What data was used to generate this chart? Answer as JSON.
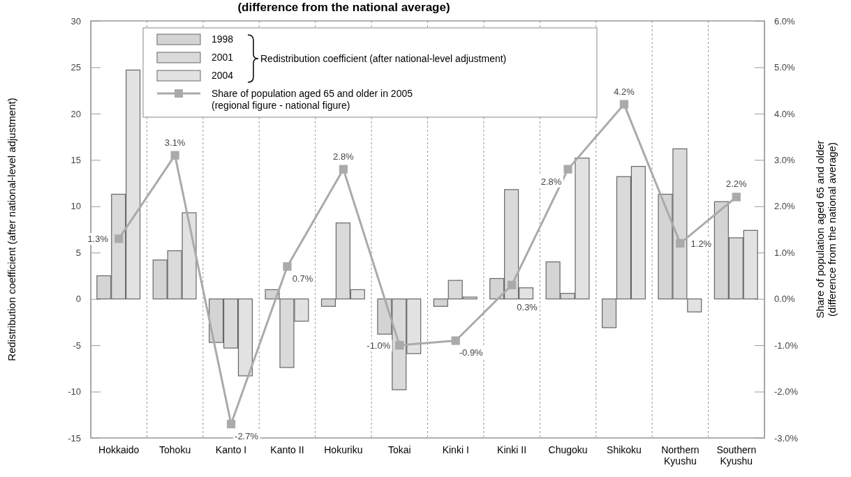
{
  "chart_data": {
    "type": "bar",
    "title": "(difference from the national average)",
    "ylabel": "Redistribution coefficient (after national-level adjustment)",
    "y2label": "Share of population aged 65 and older\n(difference from the national average)",
    "legend_title": "Redistribution coefficient (after national-level adjustment)",
    "categories": [
      "Hokkaido",
      "Tohoku",
      "Kanto I",
      "Kanto II",
      "Hokuriku",
      "Tokai",
      "Kinki I",
      "Kinki II",
      "Chugoku",
      "Shikoku",
      "Northern\nKyushu",
      "Southern\nKyushu"
    ],
    "series": [
      {
        "name": "1998",
        "color": "#d4d4d4",
        "values": [
          2.5,
          4.2,
          -4.7,
          1.0,
          -0.8,
          -3.8,
          -0.8,
          2.2,
          4.0,
          -3.1,
          11.3,
          10.5
        ]
      },
      {
        "name": "2001",
        "color": "#dadada",
        "values": [
          11.3,
          5.2,
          -5.3,
          -7.4,
          8.2,
          -9.8,
          2.0,
          11.8,
          0.6,
          13.2,
          16.2,
          6.6
        ]
      },
      {
        "name": "2004",
        "color": "#e2e2e2",
        "values": [
          24.7,
          9.3,
          -8.3,
          -2.4,
          1.0,
          -5.9,
          0.2,
          1.2,
          15.2,
          14.3,
          -1.4,
          7.4
        ]
      },
      {
        "name": "Share of population aged 65 and older in 2005\n(regional figure - national figure)",
        "type": "line",
        "axis": "y2",
        "color": "#aaaaaa",
        "values": [
          1.3,
          3.1,
          -2.7,
          0.7,
          2.8,
          -1.0,
          -0.9,
          0.3,
          2.8,
          4.2,
          1.2,
          2.2
        ],
        "value_labels": [
          "1.3%",
          "3.1%",
          "-2.7%",
          "0.7%",
          "2.8%",
          "-1.0%",
          "-0.9%",
          "0.3%",
          "2.8%",
          "4.2%",
          "1.2%",
          "2.2%"
        ]
      }
    ],
    "ylim": [
      -15,
      30
    ],
    "yticks": [
      -15,
      -10,
      -5,
      0,
      5,
      10,
      15,
      20,
      25,
      30
    ],
    "y2lim": [
      -3,
      6
    ],
    "y2ticks": [
      {
        "value": -3,
        "label": "-3.0%"
      },
      {
        "value": -2,
        "label": "-2.0%"
      },
      {
        "value": -1,
        "label": "-1.0%"
      },
      {
        "value": 0,
        "label": "0.0%"
      },
      {
        "value": 1,
        "label": "1.0%"
      },
      {
        "value": 2,
        "label": "2.0%"
      },
      {
        "value": 3,
        "label": "3.0%"
      },
      {
        "value": 4,
        "label": "4.0%"
      },
      {
        "value": 5,
        "label": "5.0%"
      },
      {
        "value": 6,
        "label": "6.0%"
      }
    ],
    "grid": "x",
    "legend": "top",
    "marker": "square",
    "line_style": "solid"
  }
}
